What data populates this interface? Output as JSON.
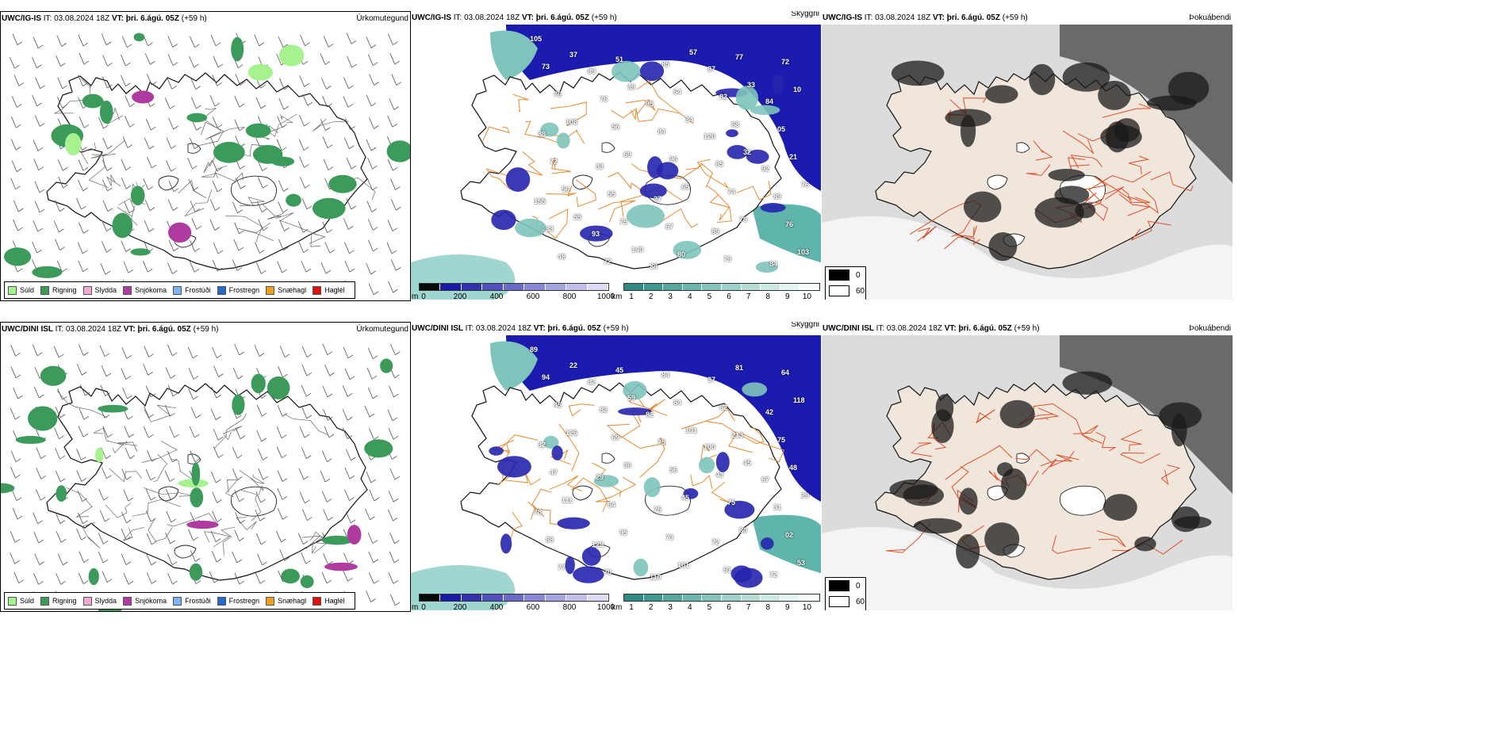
{
  "colors": {
    "precip": [
      "#a6f28f",
      "#3c9b5a",
      "#f2a9d6",
      "#b03ba0",
      "#7fb0f2",
      "#2868c8",
      "#f0a020",
      "#e01010"
    ],
    "depth": [
      "#0a0a0a",
      "#1a1aa8",
      "#3030b0",
      "#5050bc",
      "#6a6ac8",
      "#8888d4",
      "#a4a4e0",
      "#c0c0ea",
      "#dcdcf4"
    ],
    "vis": [
      "#2d8a84",
      "#3f9890",
      "#55a69e",
      "#6cb5ac",
      "#84c3bb",
      "#9cd0c9",
      "#b4ddd7",
      "#cce9e4",
      "#e2f3f1",
      "#f4fbfa"
    ]
  },
  "icons": [
    "wind-barb-icon"
  ],
  "panels": [
    {
      "header": {
        "model": "UWC/IG-IS",
        "it": "IT: 03.08.2024 18Z",
        "vt_label": "VT:",
        "vt_value": "þri. 6.ágú. 05Z",
        "lead": "(+59 h)"
      },
      "left_title": "Úrkomutegund",
      "mid_title": "Skyggni",
      "right_title": "Þokuábendi",
      "mid_labels": [
        "105",
        "89",
        "95",
        "120",
        "92",
        "155",
        "93",
        "88",
        "87",
        "84",
        "38",
        "33",
        "27",
        "89",
        "84",
        "73",
        "76",
        "84",
        "85",
        "89",
        "33",
        "72",
        "85",
        "82",
        "05",
        "72",
        "55",
        "67",
        "79",
        "72",
        "76",
        "56",
        "96",
        "74",
        "76",
        "48",
        "51",
        "64",
        "68",
        "21",
        "56",
        "75",
        "80",
        "77",
        "10",
        "108",
        "69",
        "65",
        "79",
        "103",
        "37",
        "39",
        "34",
        "32",
        "76",
        "55",
        "140",
        "57",
        "33"
      ]
    },
    {
      "header": {
        "model": "UWC/DINI ISL",
        "it": "IT: 03.08.2024 18Z",
        "vt_label": "VT:",
        "vt_value": "þri. 6.ágú. 05Z",
        "lead": "(+59 h)"
      },
      "left_title": "Úrkomutegund",
      "mid_title": "Skyggni",
      "right_title": "Þokuábendi",
      "mid_labels": [
        "89",
        "82",
        "82",
        "100",
        "67",
        "78",
        "129",
        "110",
        "37",
        "42",
        "32",
        "29",
        "75",
        "72",
        "72",
        "94",
        "82",
        "75",
        "43",
        "31",
        "88",
        "70",
        "84",
        "62",
        "75",
        "47",
        "64",
        "73",
        "61",
        "64",
        "45",
        "69",
        "56",
        "75",
        "02",
        "77",
        "45",
        "84",
        "213",
        "48",
        "111",
        "95",
        "101",
        "81",
        "118",
        "126",
        "36",
        "45",
        "80",
        "53",
        "22",
        "59",
        "101",
        "45",
        "29"
      ]
    }
  ],
  "precip_legend": [
    "Súld",
    "Rigning",
    "Slydda",
    "Snjókoma",
    "Frostúði",
    "Frostregn",
    "Snæhagl",
    "Haglél"
  ],
  "depth_bar": {
    "unit": "m",
    "ticks": [
      "0",
      "200",
      "400",
      "600",
      "800",
      "1000"
    ]
  },
  "vis_bar": {
    "unit": "km",
    "ticks": [
      "1",
      "2",
      "3",
      "4",
      "5",
      "6",
      "7",
      "8",
      "9",
      "10"
    ]
  },
  "fog_legend": {
    "low": "0",
    "high": "60"
  }
}
